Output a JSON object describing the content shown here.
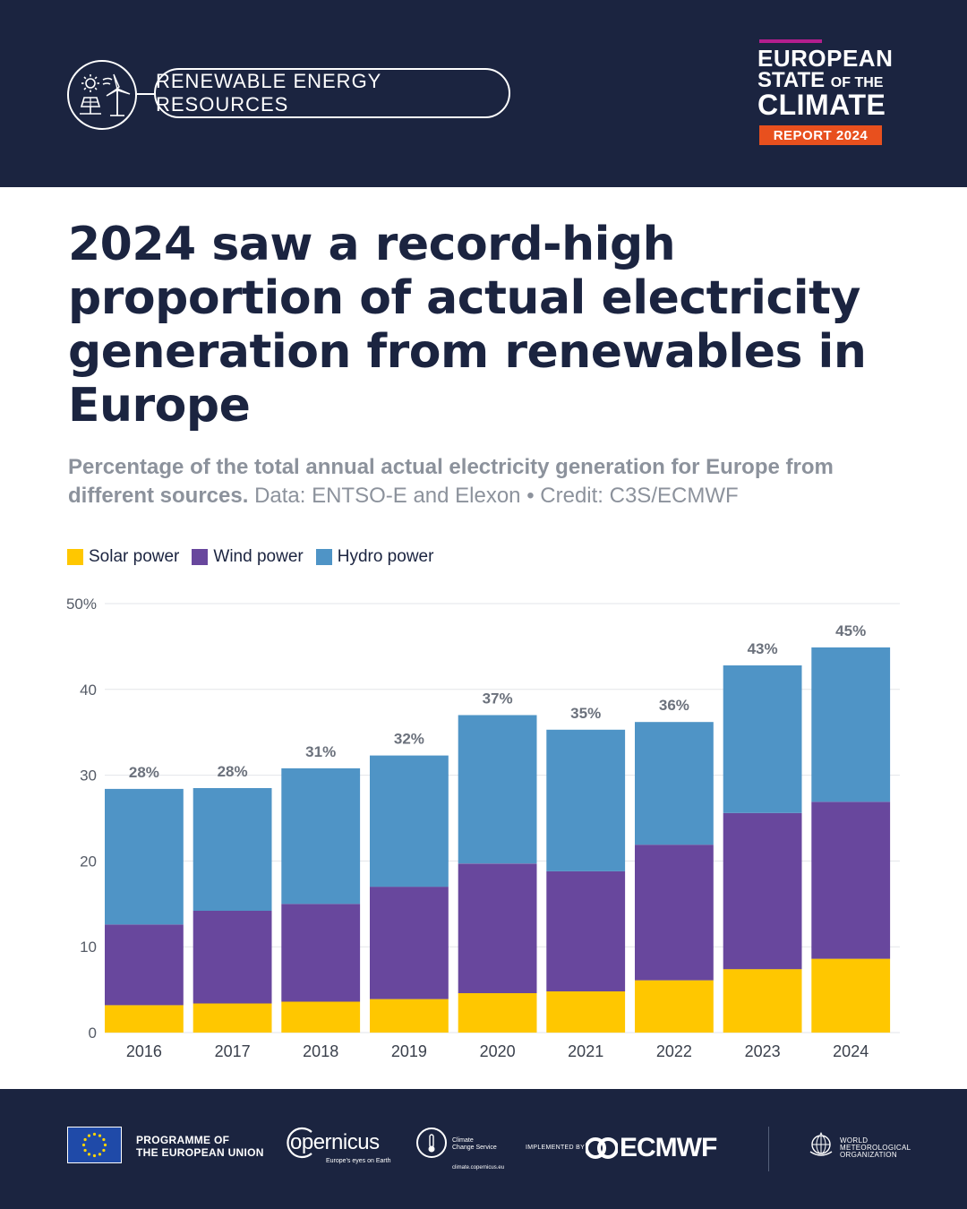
{
  "header": {
    "topic_label": "RENEWABLE ENERGY RESOURCES",
    "report": {
      "line1": "EUROPEAN",
      "line2_main": "STATE",
      "line2_small": "OF THE",
      "line3": "CLIMATE",
      "tag": "REPORT 2024"
    },
    "colors": {
      "background": "#1b2440",
      "accent_bar": "#b41e8e",
      "tag": "#e8501e"
    }
  },
  "title": "2024 saw a record-high proportion of actual electricity generation from renewables in Europe",
  "subtitle": {
    "lead": "Percentage of the total annual actual electricity generation for Europe from different sources.",
    "source": "Data: ENTSO-E and Elexon • Credit: C3S/ECMWF"
  },
  "chart_data": {
    "type": "bar",
    "stacked": true,
    "categories": [
      "2016",
      "2017",
      "2018",
      "2019",
      "2020",
      "2021",
      "2022",
      "2023",
      "2024"
    ],
    "series": [
      {
        "name": "Solar power",
        "color": "#ffc700",
        "values": [
          3.2,
          3.4,
          3.6,
          3.9,
          4.6,
          4.8,
          6.1,
          7.4,
          8.6
        ]
      },
      {
        "name": "Wind power",
        "color": "#68479d",
        "values": [
          9.4,
          10.8,
          11.4,
          13.1,
          15.1,
          14.0,
          15.8,
          18.2,
          18.3
        ]
      },
      {
        "name": "Hydro power",
        "color": "#4f94c6",
        "values": [
          15.8,
          14.3,
          15.8,
          15.3,
          17.3,
          16.5,
          14.3,
          17.2,
          18.0
        ]
      }
    ],
    "totals_labels": [
      "28%",
      "28%",
      "31%",
      "32%",
      "37%",
      "35%",
      "36%",
      "43%",
      "45%"
    ],
    "y_ticks": [
      "0",
      "10",
      "20",
      "30",
      "40",
      "50%"
    ],
    "ylim": [
      0,
      50
    ],
    "grid": true,
    "legend_position": "top-left"
  },
  "footer": {
    "eu_text_line1": "PROGRAMME OF",
    "eu_text_line2": "THE EUROPEAN UNION",
    "copernicus_name": "opernicus",
    "copernicus_tagline": "Europe's eyes on Earth",
    "c3s_line1": "Climate",
    "c3s_line2": "Change Service",
    "c3s_url": "climate.copernicus.eu",
    "implemented_by": "IMPLEMENTED BY",
    "ecmwf": "ECMWF",
    "wmo_line1": "WORLD",
    "wmo_line2": "METEOROLOGICAL",
    "wmo_line3": "ORGANIZATION"
  }
}
